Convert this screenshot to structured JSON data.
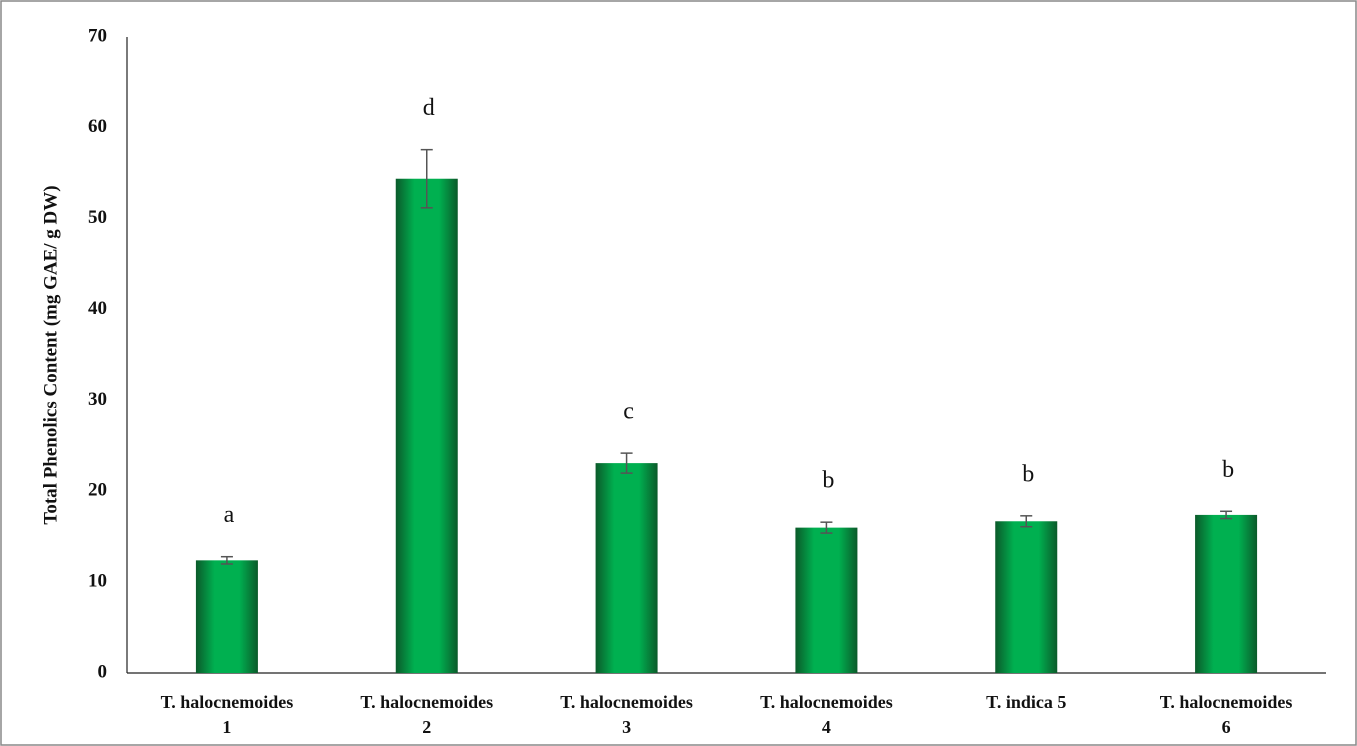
{
  "chart_data": {
    "type": "bar",
    "ylabel": "Total Phenolics Content (mg GAE/ g DW)",
    "categories": [
      [
        "T. halocnemoides",
        "1"
      ],
      [
        "T. halocnemoides",
        "2"
      ],
      [
        "T. halocnemoides",
        "3"
      ],
      [
        "T. halocnemoides",
        "4"
      ],
      [
        "T. indica 5"
      ],
      [
        "T. halocnemoides",
        "6"
      ]
    ],
    "values": [
      12.4,
      54.4,
      23.1,
      16.0,
      16.7,
      17.4
    ],
    "errors": [
      0.4,
      3.2,
      1.1,
      0.6,
      0.6,
      0.4
    ],
    "annotations": [
      "a",
      "d",
      "c",
      "b",
      "b",
      "b"
    ],
    "color": "#00b050",
    "ylim": [
      0,
      70
    ],
    "yticks": [
      0,
      10,
      20,
      30,
      40,
      50,
      60,
      70
    ],
    "grid": false
  }
}
